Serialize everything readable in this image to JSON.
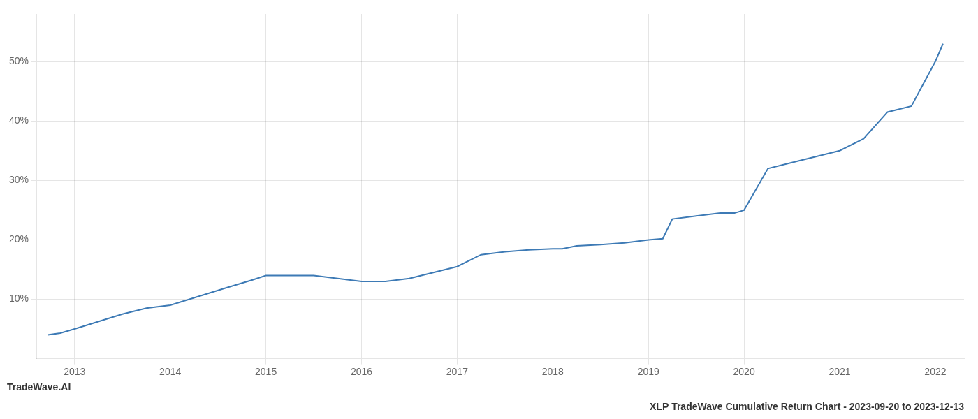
{
  "chart_data": {
    "type": "line",
    "title": "XLP TradeWave Cumulative Return Chart - 2023-09-20 to 2023-12-13",
    "annotations": [
      "TradeWave.AI"
    ],
    "x": [
      2012.72,
      2012.85,
      2013.0,
      2013.2,
      2013.5,
      2013.75,
      2014.0,
      2014.3,
      2014.6,
      2014.85,
      2015.0,
      2015.25,
      2015.5,
      2015.75,
      2016.0,
      2016.1,
      2016.25,
      2016.5,
      2016.75,
      2017.0,
      2017.25,
      2017.5,
      2017.75,
      2018.0,
      2018.1,
      2018.25,
      2018.5,
      2018.75,
      2019.0,
      2019.15,
      2019.25,
      2019.5,
      2019.75,
      2019.9,
      2020.0,
      2020.25,
      2020.5,
      2020.75,
      2021.0,
      2021.25,
      2021.5,
      2021.75,
      2022.0,
      2022.08
    ],
    "values": [
      4.0,
      4.3,
      5.0,
      6.0,
      7.5,
      8.5,
      9.0,
      10.5,
      12.0,
      13.2,
      14.0,
      14.0,
      14.0,
      13.5,
      13.0,
      13.0,
      13.0,
      13.5,
      14.5,
      15.5,
      17.5,
      18.0,
      18.3,
      18.5,
      18.5,
      19.0,
      19.2,
      19.5,
      20.0,
      20.2,
      23.5,
      24.0,
      24.5,
      24.5,
      25.0,
      32.0,
      33.0,
      34.0,
      35.0,
      37.0,
      41.5,
      42.5,
      50.0,
      53.0
    ],
    "color": "#3d7ab5",
    "xlim": [
      2012.6,
      2022.3
    ],
    "xticks": [
      2013,
      2014,
      2015,
      2016,
      2017,
      2018,
      2019,
      2020,
      2021,
      2022
    ],
    "ylim": [
      0,
      58
    ],
    "yticks": [
      {
        "value": 10,
        "label": "10%"
      },
      {
        "value": 20,
        "label": "20%"
      },
      {
        "value": 30,
        "label": "30%"
      },
      {
        "value": 40,
        "label": "40%"
      },
      {
        "value": 50,
        "label": "50%"
      }
    ],
    "grid": true
  }
}
